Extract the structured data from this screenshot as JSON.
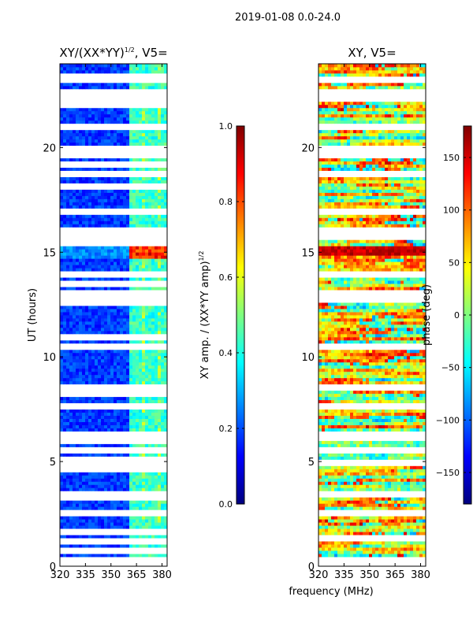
{
  "header": {
    "title": "2019-01-08 0.0-24.0"
  },
  "colors": {
    "jet": [
      "#00007f",
      "#0000ff",
      "#007fff",
      "#00ffff",
      "#7fff7f",
      "#ffff00",
      "#ff7f00",
      "#ff0000",
      "#7f0000"
    ],
    "gap": "#ffffff",
    "axis": "#000000"
  },
  "chart_data": [
    {
      "type": "heatmap",
      "title_prefix": "XY/(XX*YY)",
      "title_exponent": "1/2",
      "title_suffix": ", V5=",
      "xlabel": "",
      "ylabel": "UT (hours)",
      "xlim": [
        320,
        383
      ],
      "ylim": [
        0,
        24
      ],
      "xticks": [
        "320",
        "335",
        "350",
        "365",
        "380"
      ],
      "xtick_values": [
        320,
        335,
        350,
        365,
        380
      ],
      "yticks": [
        "0",
        "5",
        "10",
        "15",
        "20"
      ],
      "ytick_values": [
        0,
        5,
        10,
        15,
        20
      ],
      "flagged_rows_ut": [
        0.2,
        0.35,
        0.8,
        1.2,
        1.6,
        2.5,
        2.55,
        3.3,
        3.5,
        4.7,
        5.0,
        5.1,
        5.5,
        6.0,
        6.1,
        6.3,
        7.7,
        8.3,
        8.5,
        10.5,
        11.0,
        12.6,
        12.7,
        12.8,
        13.0,
        13.5,
        14.0,
        15.5,
        15.8,
        16.0,
        17.0,
        18.2,
        18.8,
        19.2,
        19.6,
        19.7,
        19.8,
        20.0,
        21.0,
        22.1,
        22.4,
        22.7,
        23.3,
        23.4
      ],
      "rfi_band_mhz": [
        361,
        383
      ],
      "rfi_channels_mhz": [
        362,
        364,
        366,
        368,
        371,
        373,
        375,
        377,
        380,
        382
      ],
      "bright_band_ut": [
        14.7,
        15.8
      ],
      "colorbar": {
        "label_prefix": "XY amp. / (XX*YY amp)",
        "label_exponent": "1/2",
        "range": [
          0.0,
          1.0
        ],
        "ticks": [
          "0.0",
          "0.2",
          "0.4",
          "0.6",
          "0.8",
          "1.0"
        ],
        "tick_values": [
          0.0,
          0.2,
          0.4,
          0.6,
          0.8,
          1.0
        ]
      }
    },
    {
      "type": "heatmap",
      "title": "XY, V5=",
      "xlabel": "frequency (MHz)",
      "ylabel": "",
      "xlim": [
        320,
        383
      ],
      "ylim": [
        0,
        24
      ],
      "xticks": [
        "320",
        "335",
        "350",
        "365",
        "380"
      ],
      "xtick_values": [
        320,
        335,
        350,
        365,
        380
      ],
      "yticks": [
        "0",
        "5",
        "10",
        "15",
        "20"
      ],
      "ytick_values": [
        0,
        5,
        10,
        15,
        20
      ],
      "flagged_rows_ut": [
        0.2,
        0.35,
        1.3,
        2.5,
        3.5,
        5.0,
        5.5,
        6.1,
        6.3,
        7.7,
        8.5,
        10.5,
        12.7,
        13.0,
        14.0,
        15.8,
        16.0,
        17.0,
        18.8,
        19.6,
        19.7,
        20.0,
        21.0,
        22.4,
        22.7,
        23.3
      ],
      "bright_band_ut": [
        14.9,
        15.3
      ],
      "colorbar": {
        "label": "phase (deg)",
        "range": [
          -180,
          180
        ],
        "ticks": [
          "−150",
          "−100",
          "−50",
          "0",
          "50",
          "100",
          "150"
        ],
        "tick_values": [
          -150,
          -100,
          -50,
          0,
          50,
          100,
          150
        ]
      }
    }
  ]
}
